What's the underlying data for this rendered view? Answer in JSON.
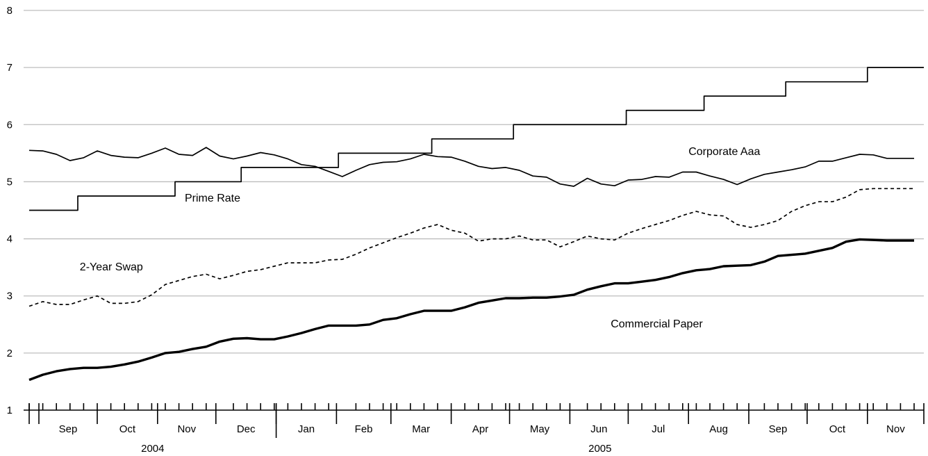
{
  "chart_data": {
    "type": "line",
    "title": "",
    "xlabel": "",
    "ylabel": "",
    "ylim": [
      1,
      8
    ],
    "yticks": [
      "1",
      "2",
      "3",
      "4",
      "5",
      "6",
      "7",
      "8"
    ],
    "grid": true,
    "x_period": [
      "2004-08-27",
      "2005-11-30"
    ],
    "months": [
      {
        "label": "Sep",
        "start": "2004-09-01",
        "end": "2004-10-01"
      },
      {
        "label": "Oct",
        "start": "2004-10-01",
        "end": "2004-11-01"
      },
      {
        "label": "Nov",
        "start": "2004-11-01",
        "end": "2004-12-01"
      },
      {
        "label": "Dec",
        "start": "2004-12-01",
        "end": "2005-01-01"
      },
      {
        "label": "Jan",
        "start": "2005-01-01",
        "end": "2005-02-01"
      },
      {
        "label": "Feb",
        "start": "2005-02-01",
        "end": "2005-03-01"
      },
      {
        "label": "Mar",
        "start": "2005-03-01",
        "end": "2005-04-01"
      },
      {
        "label": "Apr",
        "start": "2005-04-01",
        "end": "2005-05-01"
      },
      {
        "label": "May",
        "start": "2005-05-01",
        "end": "2005-06-01"
      },
      {
        "label": "Jun",
        "start": "2005-06-01",
        "end": "2005-07-01"
      },
      {
        "label": "Jul",
        "start": "2005-07-01",
        "end": "2005-08-01"
      },
      {
        "label": "Aug",
        "start": "2005-08-01",
        "end": "2005-09-01"
      },
      {
        "label": "Sep",
        "start": "2005-09-01",
        "end": "2005-10-01"
      },
      {
        "label": "Oct",
        "start": "2005-10-01",
        "end": "2005-11-01"
      },
      {
        "label": "Nov",
        "start": "2005-11-01",
        "end": "2005-12-01"
      }
    ],
    "years": [
      {
        "label": "2004",
        "start": "2004-08-27",
        "end": "2005-01-01"
      },
      {
        "label": "2005",
        "start": "2005-01-01",
        "end": "2005-11-30"
      }
    ],
    "week_ticks": [
      "2004-08-27",
      "2004-09-03",
      "2004-09-10",
      "2004-09-17",
      "2004-09-24",
      "2004-10-08",
      "2004-10-15",
      "2004-10-22",
      "2004-10-29",
      "2004-11-05",
      "2004-11-12",
      "2004-11-19",
      "2004-11-26",
      "2004-12-10",
      "2004-12-17",
      "2004-12-24",
      "2004-12-31",
      "2005-01-07",
      "2005-01-14",
      "2005-01-21",
      "2005-01-28",
      "2005-02-11",
      "2005-02-18",
      "2005-02-25",
      "2005-03-04",
      "2005-03-11",
      "2005-03-18",
      "2005-03-25",
      "2005-04-08",
      "2005-04-15",
      "2005-04-22",
      "2005-04-29",
      "2005-05-06",
      "2005-05-13",
      "2005-05-20",
      "2005-05-27",
      "2005-06-10",
      "2005-06-17",
      "2005-06-24",
      "2005-07-08",
      "2005-07-15",
      "2005-07-22",
      "2005-07-29",
      "2005-08-05",
      "2005-08-12",
      "2005-08-19",
      "2005-08-26",
      "2005-09-09",
      "2005-09-16",
      "2005-09-23",
      "2005-09-30",
      "2005-10-07",
      "2005-10-14",
      "2005-10-21",
      "2005-10-28",
      "2005-11-04",
      "2005-11-11",
      "2005-11-18",
      "2005-11-25"
    ],
    "series": [
      {
        "name": "Prime Rate",
        "style": "step",
        "color": "#000000",
        "dates": [
          "2004-08-27",
          "2004-09-21",
          "2004-11-10",
          "2004-12-14",
          "2005-02-02",
          "2005-03-22",
          "2005-05-03",
          "2005-06-30",
          "2005-08-09",
          "2005-09-20",
          "2005-11-01",
          "2005-11-30"
        ],
        "values": [
          4.5,
          4.75,
          5.0,
          5.25,
          5.5,
          5.75,
          6.0,
          6.25,
          6.5,
          6.75,
          7.0,
          7.0
        ]
      },
      {
        "name": "Corporate Aaa",
        "style": "solid",
        "color": "#000000",
        "dates": [
          "2004-08-27",
          "2004-09-03",
          "2004-09-10",
          "2004-09-17",
          "2004-09-24",
          "2004-10-01",
          "2004-10-08",
          "2004-10-15",
          "2004-10-22",
          "2004-10-29",
          "2004-11-05",
          "2004-11-12",
          "2004-11-19",
          "2004-11-26",
          "2004-12-03",
          "2004-12-10",
          "2004-12-17",
          "2004-12-24",
          "2004-12-31",
          "2005-01-07",
          "2005-01-14",
          "2005-01-21",
          "2005-01-28",
          "2005-02-04",
          "2005-02-11",
          "2005-02-18",
          "2005-02-25",
          "2005-03-04",
          "2005-03-11",
          "2005-03-18",
          "2005-03-25",
          "2005-04-01",
          "2005-04-08",
          "2005-04-15",
          "2005-04-22",
          "2005-04-29",
          "2005-05-06",
          "2005-05-13",
          "2005-05-20",
          "2005-05-27",
          "2005-06-03",
          "2005-06-10",
          "2005-06-17",
          "2005-06-24",
          "2005-07-01",
          "2005-07-08",
          "2005-07-15",
          "2005-07-22",
          "2005-07-29",
          "2005-08-05",
          "2005-08-12",
          "2005-08-19",
          "2005-08-26",
          "2005-09-02",
          "2005-09-09",
          "2005-09-16",
          "2005-09-23",
          "2005-09-30",
          "2005-10-07",
          "2005-10-14",
          "2005-10-21",
          "2005-10-28",
          "2005-11-04",
          "2005-11-11",
          "2005-11-18",
          "2005-11-25"
        ],
        "values": [
          5.55,
          5.54,
          5.48,
          5.37,
          5.42,
          5.54,
          5.46,
          5.43,
          5.42,
          5.5,
          5.59,
          5.48,
          5.46,
          5.6,
          5.45,
          5.4,
          5.45,
          5.51,
          5.47,
          5.4,
          5.3,
          5.27,
          5.18,
          5.09,
          5.2,
          5.3,
          5.34,
          5.35,
          5.4,
          5.48,
          5.44,
          5.43,
          5.36,
          5.27,
          5.23,
          5.25,
          5.2,
          5.1,
          5.08,
          4.96,
          4.92,
          5.06,
          4.96,
          4.93,
          5.03,
          5.04,
          5.09,
          5.08,
          5.17,
          5.17,
          5.1,
          5.04,
          4.95,
          5.05,
          5.13,
          5.17,
          5.21,
          5.26,
          5.36,
          5.36,
          5.42,
          5.48,
          5.47,
          5.41,
          5.41,
          5.41
        ]
      },
      {
        "name": "2-Year Swap",
        "style": "dashed",
        "color": "#000000",
        "dates": [
          "2004-08-27",
          "2004-09-03",
          "2004-09-10",
          "2004-09-17",
          "2004-09-24",
          "2004-10-01",
          "2004-10-08",
          "2004-10-15",
          "2004-10-22",
          "2004-10-29",
          "2004-11-05",
          "2004-11-12",
          "2004-11-19",
          "2004-11-26",
          "2004-12-03",
          "2004-12-10",
          "2004-12-17",
          "2004-12-24",
          "2004-12-31",
          "2005-01-07",
          "2005-01-14",
          "2005-01-21",
          "2005-01-28",
          "2005-02-04",
          "2005-02-11",
          "2005-02-18",
          "2005-02-25",
          "2005-03-04",
          "2005-03-11",
          "2005-03-18",
          "2005-03-25",
          "2005-04-01",
          "2005-04-08",
          "2005-04-15",
          "2005-04-22",
          "2005-04-29",
          "2005-05-06",
          "2005-05-13",
          "2005-05-20",
          "2005-05-27",
          "2005-06-03",
          "2005-06-10",
          "2005-06-17",
          "2005-06-24",
          "2005-07-01",
          "2005-07-08",
          "2005-07-15",
          "2005-07-22",
          "2005-07-29",
          "2005-08-05",
          "2005-08-12",
          "2005-08-19",
          "2005-08-26",
          "2005-09-02",
          "2005-09-09",
          "2005-09-16",
          "2005-09-23",
          "2005-09-30",
          "2005-10-07",
          "2005-10-14",
          "2005-10-21",
          "2005-10-28",
          "2005-11-04",
          "2005-11-11",
          "2005-11-18",
          "2005-11-25"
        ],
        "values": [
          2.82,
          2.9,
          2.85,
          2.85,
          2.93,
          3.0,
          2.87,
          2.87,
          2.9,
          3.02,
          3.2,
          3.27,
          3.34,
          3.38,
          3.3,
          3.36,
          3.43,
          3.46,
          3.52,
          3.58,
          3.58,
          3.58,
          3.63,
          3.64,
          3.73,
          3.84,
          3.93,
          4.02,
          4.1,
          4.19,
          4.25,
          4.15,
          4.1,
          3.96,
          4.0,
          4.0,
          4.05,
          3.98,
          3.98,
          3.86,
          3.95,
          4.05,
          4.0,
          3.98,
          4.1,
          4.18,
          4.25,
          4.32,
          4.41,
          4.48,
          4.42,
          4.4,
          4.25,
          4.2,
          4.25,
          4.32,
          4.48,
          4.58,
          4.65,
          4.65,
          4.73,
          4.86,
          4.88,
          4.88,
          4.88,
          4.88
        ]
      },
      {
        "name": "Commercial Paper",
        "style": "bold",
        "color": "#000000",
        "dates": [
          "2004-08-27",
          "2004-09-03",
          "2004-09-10",
          "2004-09-17",
          "2004-09-24",
          "2004-10-01",
          "2004-10-08",
          "2004-10-15",
          "2004-10-22",
          "2004-10-29",
          "2004-11-05",
          "2004-11-12",
          "2004-11-19",
          "2004-11-26",
          "2004-12-03",
          "2004-12-10",
          "2004-12-17",
          "2004-12-24",
          "2004-12-31",
          "2005-01-07",
          "2005-01-14",
          "2005-01-21",
          "2005-01-28",
          "2005-02-04",
          "2005-02-11",
          "2005-02-18",
          "2005-02-25",
          "2005-03-04",
          "2005-03-11",
          "2005-03-18",
          "2005-03-25",
          "2005-04-01",
          "2005-04-08",
          "2005-04-15",
          "2005-04-22",
          "2005-04-29",
          "2005-05-06",
          "2005-05-13",
          "2005-05-20",
          "2005-05-27",
          "2005-06-03",
          "2005-06-10",
          "2005-06-17",
          "2005-06-24",
          "2005-07-01",
          "2005-07-08",
          "2005-07-15",
          "2005-07-22",
          "2005-07-29",
          "2005-08-05",
          "2005-08-12",
          "2005-08-19",
          "2005-08-26",
          "2005-09-02",
          "2005-09-09",
          "2005-09-16",
          "2005-09-23",
          "2005-09-30",
          "2005-10-07",
          "2005-10-14",
          "2005-10-21",
          "2005-10-28",
          "2005-11-04",
          "2005-11-11",
          "2005-11-18",
          "2005-11-25"
        ],
        "values": [
          1.53,
          1.62,
          1.68,
          1.72,
          1.74,
          1.74,
          1.76,
          1.8,
          1.85,
          1.92,
          2.0,
          2.02,
          2.07,
          2.11,
          2.2,
          2.25,
          2.26,
          2.24,
          2.24,
          2.29,
          2.35,
          2.42,
          2.48,
          2.48,
          2.48,
          2.5,
          2.58,
          2.61,
          2.68,
          2.74,
          2.74,
          2.74,
          2.8,
          2.88,
          2.92,
          2.96,
          2.96,
          2.97,
          2.97,
          2.99,
          3.02,
          3.11,
          3.17,
          3.22,
          3.22,
          3.25,
          3.28,
          3.33,
          3.4,
          3.45,
          3.47,
          3.52,
          3.53,
          3.54,
          3.6,
          3.7,
          3.72,
          3.74,
          3.79,
          3.84,
          3.95,
          3.99,
          3.98,
          3.97,
          3.97,
          3.97
        ]
      }
    ],
    "annotations": [
      {
        "text": "Corporate Aaa",
        "date": "2005-08-01",
        "value": 5.47
      },
      {
        "text": "Prime Rate",
        "date": "2004-11-15",
        "value": 4.65
      },
      {
        "text": "2-Year Swap",
        "date": "2004-09-22",
        "value": 3.45
      },
      {
        "text": "Commercial Paper",
        "date": "2005-06-22",
        "value": 2.45
      }
    ]
  }
}
